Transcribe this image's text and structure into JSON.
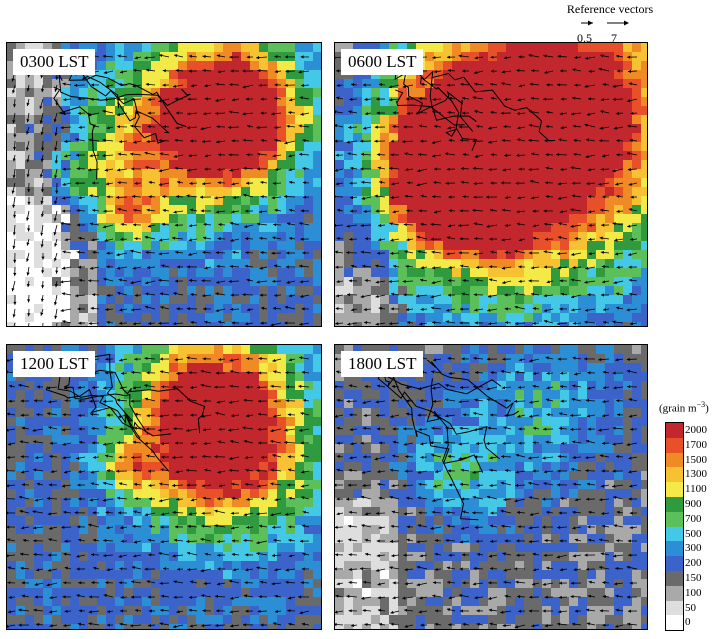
{
  "reference_vectors": {
    "title": "Reference vectors",
    "labels": [
      "0.5",
      "7"
    ]
  },
  "panels": [
    {
      "label": "0300 LST"
    },
    {
      "label": "0600 LST"
    },
    {
      "label": "1200 LST"
    },
    {
      "label": "1800 LST"
    }
  ],
  "legend": {
    "unit": "(grain m",
    "unit_exp": "−3",
    "unit_close": ")",
    "levels": [
      "2000",
      "1700",
      "1500",
      "1300",
      "1100",
      "900",
      "700",
      "500",
      "300",
      "200",
      "150",
      "100",
      "50",
      "0"
    ],
    "colors": [
      "#c1272d",
      "#e8502a",
      "#f08a24",
      "#f6c231",
      "#f3ea47",
      "#2f9a3e",
      "#5cc05a",
      "#44c8e8",
      "#2c8fd6",
      "#3b63c9",
      "#6a6a6a",
      "#a9a9a9",
      "#dedede",
      "#ffffff"
    ]
  }
}
